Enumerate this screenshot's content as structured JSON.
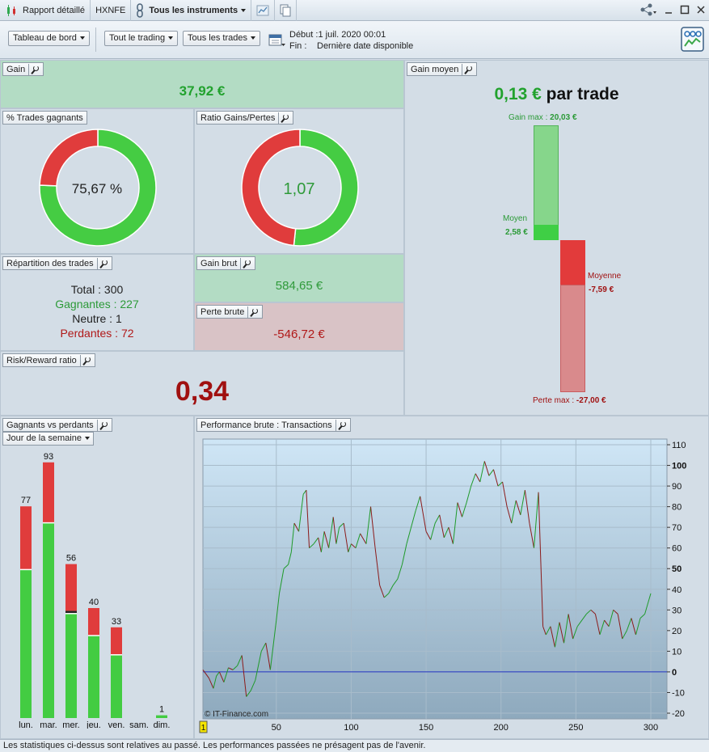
{
  "titlebar": {
    "report": "Rapport détaillé",
    "account": "HXNFE",
    "instruments": "Tous les instruments"
  },
  "toolbar": {
    "dashboard": "Tableau de bord",
    "trading": "Tout le trading",
    "trades": "Tous les trades",
    "start_label": "Début :",
    "start_value": "1 juil. 2020 00:01",
    "end_label": "Fin :",
    "end_value": "Dernière date disponible"
  },
  "gain": {
    "title": "Gain",
    "value": "37,92 €"
  },
  "win_pct": {
    "title": "% Trades gagnants",
    "value": "75,67 %",
    "fraction": 0.7567
  },
  "ratio": {
    "title": "Ratio Gains/Pertes",
    "value": "1,07",
    "fraction": 0.5167
  },
  "repartition": {
    "title": "Répartition des trades",
    "total": "Total : 300",
    "winners": "Gagnantes : 227",
    "neutral": "Neutre : 1",
    "losers": "Perdantes : 72"
  },
  "gross_gain": {
    "title": "Gain brut",
    "value": "584,65 €"
  },
  "gross_loss": {
    "title": "Perte brute",
    "value": "-546,72 €"
  },
  "risk_reward": {
    "title": "Risk/Reward ratio",
    "value": "0,34"
  },
  "avg_gain": {
    "title": "Gain moyen",
    "value": "0,13 €",
    "suffix": "par trade",
    "max_gain_label": "Gain max :",
    "max_gain_value": "20,03 €",
    "avg_label": "Moyen",
    "avg_value": "2,58 €",
    "mean_loss_label": "Moyenne",
    "mean_loss_value": "-7,59 €",
    "max_loss_label": "Perte max :",
    "max_loss_value": "-27,00 €",
    "max_gain": 20.03,
    "avg_win": 2.58,
    "avg_loss": -7.59,
    "max_loss": -27.0
  },
  "weekday": {
    "title": "Gagnants vs perdants",
    "selector": "Jour de la semaine",
    "days": [
      {
        "label": "lun.",
        "total": 77,
        "win": 54,
        "loss": 23,
        "total_label": "77"
      },
      {
        "label": "mar.",
        "total": 93,
        "win": 71,
        "loss": 22,
        "total_label": "93"
      },
      {
        "label": "mer.",
        "total": 56,
        "win": 38,
        "loss": 17,
        "neutral": 1,
        "total_label": "56"
      },
      {
        "label": "jeu.",
        "total": 40,
        "win": 30,
        "loss": 10,
        "total_label": "40"
      },
      {
        "label": "ven.",
        "total": 33,
        "win": 23,
        "loss": 10,
        "total_label": "33"
      },
      {
        "label": "sam.",
        "total": 0,
        "win": 0,
        "loss": 0,
        "total_label": ""
      },
      {
        "label": "dim.",
        "total": 1,
        "win": 1,
        "loss": 0,
        "total_label": "1"
      }
    ]
  },
  "performance": {
    "title": "Performance brute : Transactions",
    "watermark": "© IT-Finance.com",
    "start_marker": "1"
  },
  "chart_data": {
    "type": "line",
    "x": [
      1,
      5,
      8,
      10,
      12,
      15,
      18,
      21,
      24,
      27,
      30,
      33,
      36,
      40,
      43,
      46,
      50,
      52,
      55,
      58,
      60,
      62,
      65,
      68,
      70,
      72,
      75,
      78,
      80,
      82,
      85,
      88,
      90,
      92,
      95,
      98,
      100,
      103,
      106,
      110,
      113,
      116,
      119,
      122,
      125,
      128,
      131,
      134,
      137,
      140,
      143,
      146,
      150,
      153,
      156,
      159,
      162,
      165,
      168,
      171,
      174,
      177,
      180,
      183,
      186,
      189,
      192,
      195,
      198,
      201,
      204,
      207,
      210,
      213,
      216,
      219,
      222,
      225,
      228,
      230,
      233,
      236,
      239,
      242,
      245,
      248,
      251,
      254,
      257,
      260,
      263,
      266,
      269,
      272,
      275,
      278,
      281,
      284,
      287,
      290,
      293,
      296,
      300
    ],
    "y": [
      1,
      -3,
      -8,
      -2,
      0,
      -5,
      2,
      1,
      3,
      8,
      -12,
      -9,
      -4,
      10,
      14,
      1,
      25,
      38,
      50,
      52,
      58,
      72,
      68,
      86,
      88,
      60,
      62,
      65,
      58,
      68,
      60,
      75,
      62,
      70,
      72,
      58,
      62,
      60,
      67,
      62,
      80,
      60,
      42,
      36,
      38,
      42,
      45,
      52,
      62,
      70,
      78,
      85,
      68,
      64,
      72,
      76,
      65,
      70,
      62,
      82,
      75,
      82,
      90,
      96,
      92,
      102,
      95,
      98,
      90,
      92,
      80,
      72,
      83,
      76,
      88,
      72,
      60,
      87,
      22,
      18,
      22,
      12,
      24,
      14,
      28,
      16,
      22,
      25,
      28,
      30,
      28,
      18,
      25,
      22,
      30,
      28,
      16,
      20,
      26,
      18,
      26,
      28,
      38
    ],
    "xlim": [
      1,
      300
    ],
    "ylim": [
      -20,
      110
    ],
    "x_ticks": [
      50,
      100,
      150,
      200,
      250,
      300
    ],
    "y_ticks": [
      -20,
      -10,
      0,
      10,
      20,
      30,
      40,
      50,
      60,
      70,
      80,
      90,
      100,
      110
    ],
    "zero_line": 0,
    "grid": true
  },
  "footer": "Les statistiques ci-dessus sont relatives au passé. Les performances passées ne présagent pas de l'avenir."
}
